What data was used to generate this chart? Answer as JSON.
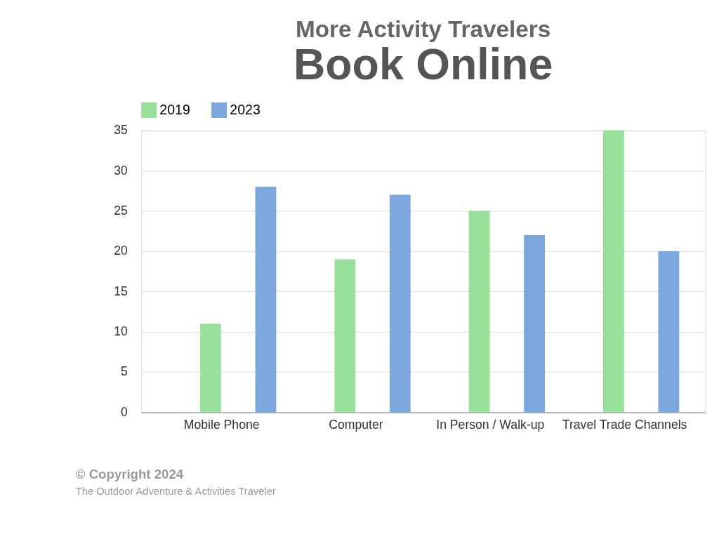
{
  "chart_data": {
    "type": "bar",
    "title": "More Activity Travelers",
    "subtitle": "Book Online",
    "categories": [
      "Mobile Phone",
      "Computer",
      "In Person / Walk-up",
      "Travel Trade Channels"
    ],
    "series": [
      {
        "name": "2019",
        "color": "#98e09a",
        "values": [
          11,
          19,
          25,
          35
        ]
      },
      {
        "name": "2023",
        "color": "#7ba7dd",
        "values": [
          28,
          27,
          22,
          20
        ]
      }
    ],
    "ylim": [
      0,
      35
    ],
    "yticks": [
      0,
      5,
      10,
      15,
      20,
      25,
      30,
      35
    ],
    "grid": "y",
    "legend": "top",
    "annotations": [
      "© Copyright 2024",
      "The Outdoor Adventure & Activities Traveler"
    ]
  }
}
